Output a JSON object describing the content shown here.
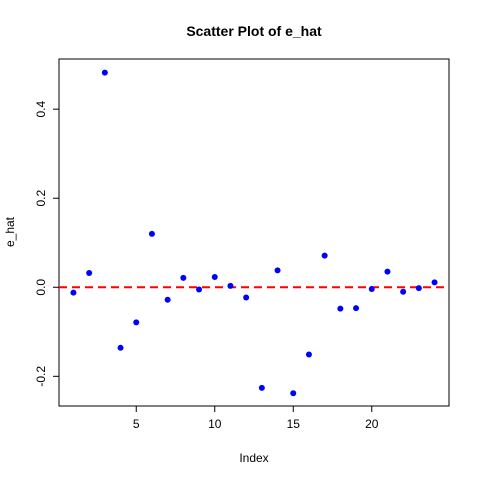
{
  "chart_data": {
    "type": "scatter",
    "title": "Scatter Plot of e_hat",
    "xlabel": "Index",
    "ylabel": "e_hat",
    "xlim": [
      0.08,
      24.92
    ],
    "ylim": [
      -0.2667,
      0.5127
    ],
    "x_ticks": [
      5,
      10,
      15,
      20
    ],
    "y_ticks": [
      -0.2,
      0.0,
      0.2,
      0.4
    ],
    "x_tick_labels": [
      "5",
      "10",
      "15",
      "20"
    ],
    "y_tick_labels": [
      "-0.2",
      "0.0",
      "0.2",
      "0.4"
    ],
    "grid": false,
    "legend": "none",
    "point_color": "#0000ff",
    "reference_line": {
      "y": 0.0,
      "style": "dashed",
      "color": "#ff0000"
    },
    "x": [
      1,
      2,
      3,
      4,
      5,
      6,
      7,
      8,
      9,
      10,
      11,
      12,
      13,
      14,
      15,
      16,
      17,
      18,
      19,
      20,
      21,
      22,
      23,
      24
    ],
    "y": [
      -0.012,
      0.032,
      0.482,
      -0.136,
      -0.079,
      0.12,
      -0.028,
      0.021,
      -0.005,
      0.023,
      0.003,
      -0.023,
      -0.226,
      0.038,
      -0.238,
      -0.151,
      0.071,
      -0.048,
      -0.047,
      -0.004,
      0.035,
      -0.01,
      -0.002,
      0.011
    ]
  }
}
